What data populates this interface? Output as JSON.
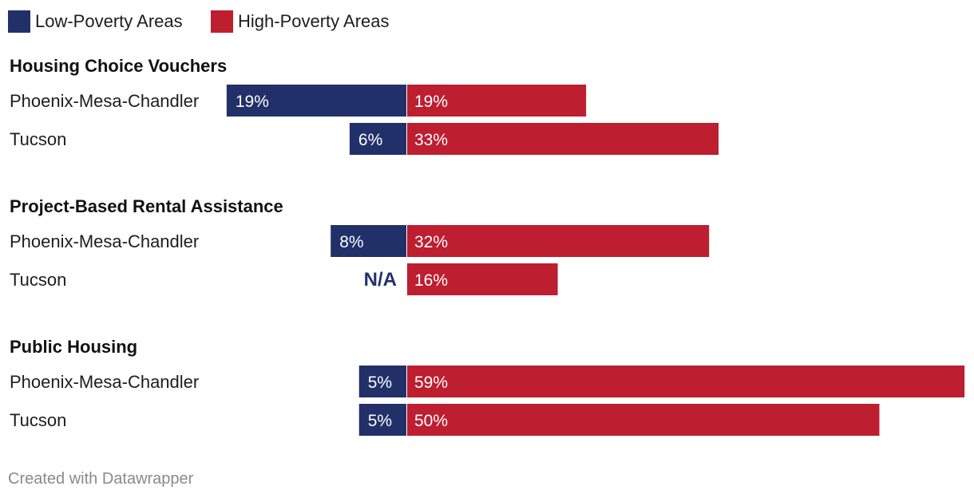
{
  "chart_data": {
    "type": "bar",
    "subtype": "diverging-horizontal",
    "legend": [
      {
        "name": "Low-Poverty Areas",
        "color": "#22306a"
      },
      {
        "name": "High-Poverty Areas",
        "color": "#bd1e30"
      }
    ],
    "groups": [
      {
        "title": "Housing Choice Vouchers",
        "rows": [
          {
            "label": "Phoenix-Mesa-Chandler",
            "low": 19,
            "low_label": "19%",
            "high": 19,
            "high_label": "19%"
          },
          {
            "label": "Tucson",
            "low": 6,
            "low_label": "6%",
            "high": 33,
            "high_label": "33%"
          }
        ]
      },
      {
        "title": "Project-Based Rental Assistance",
        "rows": [
          {
            "label": "Phoenix-Mesa-Chandler",
            "low": 8,
            "low_label": "8%",
            "high": 32,
            "high_label": "32%"
          },
          {
            "label": "Tucson",
            "low": null,
            "low_label": "N/A",
            "high": 16,
            "high_label": "16%"
          }
        ]
      },
      {
        "title": "Public Housing",
        "rows": [
          {
            "label": "Phoenix-Mesa-Chandler",
            "low": 5,
            "low_label": "5%",
            "high": 59,
            "high_label": "59%"
          },
          {
            "label": "Tucson",
            "low": 5,
            "low_label": "5%",
            "high": 50,
            "high_label": "50%"
          }
        ]
      }
    ],
    "footer": "Created with Datawrapper"
  }
}
